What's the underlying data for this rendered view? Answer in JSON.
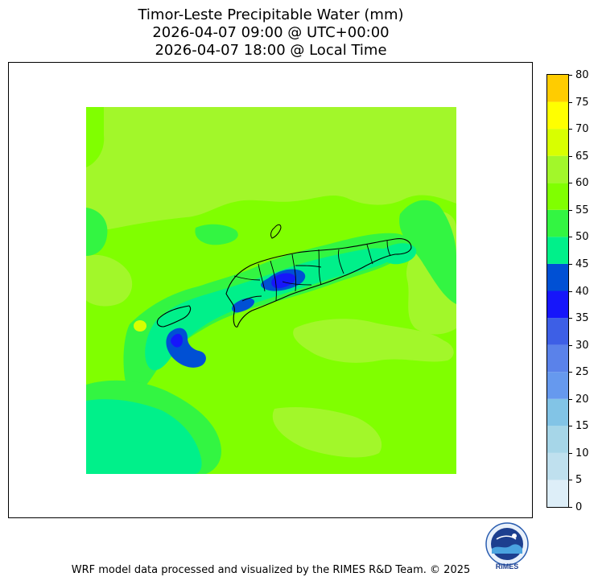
{
  "title": {
    "line1": "Timor-Leste Precipitable Water (mm)",
    "line2": "2026-04-07 09:00 @ UTC+00:00",
    "line3": "2026-04-07 18:00 @ Local Time"
  },
  "colorbar": {
    "ticks": [
      "0",
      "5",
      "10",
      "15",
      "20",
      "25",
      "30",
      "35",
      "40",
      "45",
      "50",
      "55",
      "60",
      "65",
      "70",
      "75",
      "80"
    ],
    "bands": [
      {
        "from": 0,
        "to": 5,
        "color": "#ddeef8"
      },
      {
        "from": 5,
        "to": 10,
        "color": "#bfe0ee"
      },
      {
        "from": 10,
        "to": 15,
        "color": "#a6d6e8"
      },
      {
        "from": 15,
        "to": 20,
        "color": "#82c4e6"
      },
      {
        "from": 20,
        "to": 25,
        "color": "#6699ee"
      },
      {
        "from": 25,
        "to": 30,
        "color": "#5a82ea"
      },
      {
        "from": 30,
        "to": 35,
        "color": "#3d5fe6"
      },
      {
        "from": 35,
        "to": 40,
        "color": "#1616fa"
      },
      {
        "from": 40,
        "to": 45,
        "color": "#0050d4"
      },
      {
        "from": 45,
        "to": 50,
        "color": "#00f08a"
      },
      {
        "from": 50,
        "to": 55,
        "color": "#33f542"
      },
      {
        "from": 55,
        "to": 60,
        "color": "#80ff00"
      },
      {
        "from": 60,
        "to": 65,
        "color": "#a2f72a"
      },
      {
        "from": 65,
        "to": 70,
        "color": "#d8ff00"
      },
      {
        "from": 70,
        "to": 75,
        "color": "#ffff00"
      },
      {
        "from": 75,
        "to": 80,
        "color": "#ffcc00"
      }
    ]
  },
  "logo": {
    "label": "RIMES"
  },
  "footer": {
    "credit": "WRF model data processed and visualized by the RIMES R&D Team. © 2025"
  }
}
